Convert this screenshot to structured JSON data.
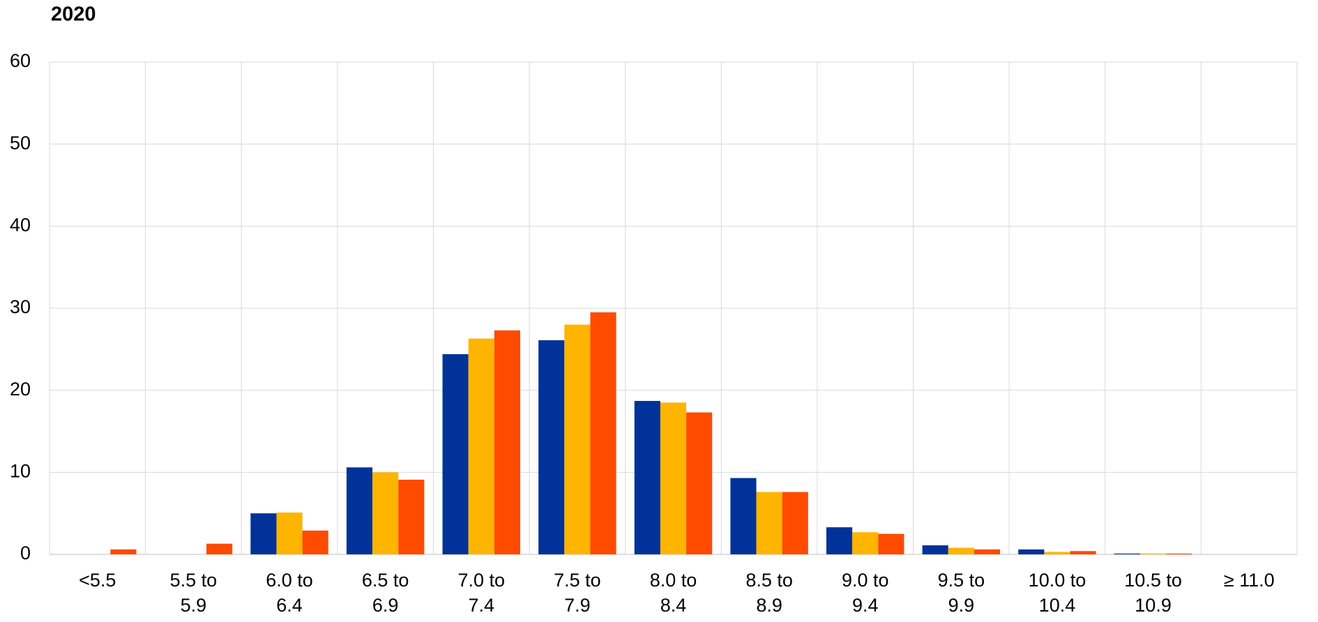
{
  "chart_data": {
    "type": "bar",
    "title": "2020",
    "categories": [
      "<5.5",
      "5.5 to 5.9",
      "6.0 to 6.4",
      "6.5 to 6.9",
      "7.0 to 7.4",
      "7.5 to 7.9",
      "8.0 to 8.4",
      "8.5 to 8.9",
      "9.0 to 9.4",
      "9.5 to 9.9",
      "10.0 to 10.4",
      "10.5 to 10.9",
      "≥ 11.0"
    ],
    "series": [
      {
        "color": "#003299",
        "values": [
          0,
          0,
          5.0,
          10.6,
          24.4,
          26.1,
          18.7,
          9.3,
          3.3,
          1.1,
          0.6,
          0.1,
          0
        ]
      },
      {
        "color": "#ffb400",
        "values": [
          0,
          0,
          5.1,
          10.0,
          26.3,
          28.0,
          18.5,
          7.6,
          2.7,
          0.8,
          0.3,
          0.1,
          0
        ]
      },
      {
        "color": "#ff4b00",
        "values": [
          0.6,
          1.3,
          2.9,
          9.1,
          27.3,
          29.5,
          17.3,
          7.6,
          2.5,
          0.6,
          0.4,
          0.1,
          0
        ]
      }
    ],
    "ylim": [
      0,
      60
    ],
    "yticks": [
      0,
      10,
      20,
      30,
      40,
      50,
      60
    ],
    "grid": true
  }
}
